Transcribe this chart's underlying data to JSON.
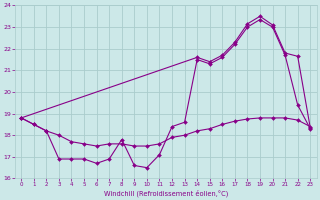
{
  "xlabel": "Windchill (Refroidissement éolien,°C)",
  "bg_color": "#cce8e8",
  "grid_color": "#aacccc",
  "line_color": "#880088",
  "xlim": [
    -0.5,
    23.5
  ],
  "ylim": [
    16,
    24
  ],
  "yticks": [
    16,
    17,
    18,
    19,
    20,
    21,
    22,
    23,
    24
  ],
  "xticks": [
    0,
    1,
    2,
    3,
    4,
    5,
    6,
    7,
    8,
    9,
    10,
    11,
    12,
    13,
    14,
    15,
    16,
    17,
    18,
    19,
    20,
    21,
    22,
    23
  ],
  "line1_x": [
    0,
    1,
    2,
    3,
    4,
    5,
    6,
    7,
    8,
    9,
    10,
    11,
    12,
    13,
    14,
    15,
    16,
    17,
    18,
    19,
    20,
    21,
    22,
    23
  ],
  "line1_y": [
    18.8,
    18.5,
    18.2,
    16.9,
    16.9,
    16.9,
    16.7,
    16.9,
    17.8,
    16.6,
    16.5,
    17.1,
    18.4,
    18.6,
    21.5,
    21.3,
    21.6,
    22.2,
    23.0,
    23.35,
    23.0,
    21.7,
    19.4,
    18.3
  ],
  "line2_x": [
    0,
    1,
    2,
    3,
    4,
    5,
    6,
    7,
    8,
    9,
    10,
    11,
    12,
    13,
    14,
    15,
    16,
    17,
    18,
    19,
    20,
    21,
    22,
    23
  ],
  "line2_y": [
    18.8,
    18.5,
    18.2,
    18.0,
    17.7,
    17.6,
    17.5,
    17.6,
    17.6,
    17.5,
    17.5,
    17.6,
    17.9,
    18.0,
    18.2,
    18.3,
    18.5,
    18.65,
    18.75,
    18.8,
    18.8,
    18.8,
    18.7,
    18.4
  ],
  "line3_x": [
    0,
    14,
    15,
    16,
    17,
    18,
    19,
    20,
    21,
    22,
    23
  ],
  "line3_y": [
    18.8,
    21.6,
    21.4,
    21.7,
    22.3,
    23.15,
    23.5,
    23.1,
    21.8,
    21.65,
    18.35
  ]
}
